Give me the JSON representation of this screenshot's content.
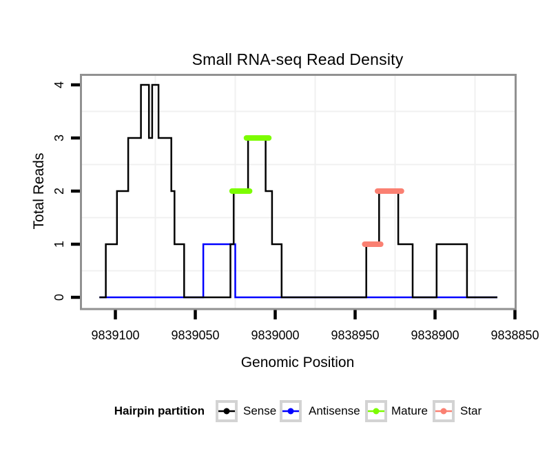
{
  "title": "Small RNA-seq Read Density",
  "axes": {
    "x": {
      "label": "Genomic Position",
      "ticks": [
        9839100,
        9839050,
        9839000,
        9838950,
        9838900,
        9838850
      ],
      "minor_gridlines": [
        9839075,
        9839025,
        9838975,
        9838925,
        9838875
      ],
      "range": [
        9839122,
        9838850
      ],
      "reversed": true
    },
    "y": {
      "label": "Total Reads",
      "ticks": [
        0,
        1,
        2,
        3,
        4
      ],
      "minor_gridlines": [
        0.5,
        1.5,
        2.5,
        3.5
      ],
      "range": [
        -0.2,
        4.2
      ]
    }
  },
  "chart_data": {
    "type": "line",
    "subtype": "step-density",
    "title": "Small RNA-seq Read Density",
    "xlabel": "Genomic Position",
    "ylabel": "Total Reads",
    "x_reversed": true,
    "grid": "minor-only",
    "series": [
      {
        "name": "Sense",
        "color": "#000000",
        "style": "step",
        "points": [
          [
            9839110,
            0
          ],
          [
            9839106,
            1
          ],
          [
            9839099,
            2
          ],
          [
            9839092,
            3
          ],
          [
            9839084,
            4
          ],
          [
            9839079,
            3
          ],
          [
            9839077,
            4
          ],
          [
            9839073,
            3
          ],
          [
            9839065,
            2
          ],
          [
            9839063,
            1
          ],
          [
            9839057,
            0
          ],
          [
            9839028,
            1
          ],
          [
            9839026,
            2
          ],
          [
            9839017,
            3
          ],
          [
            9839006,
            2
          ],
          [
            9839002,
            1
          ],
          [
            9838996,
            0
          ],
          [
            9838943,
            1
          ],
          [
            9838935,
            2
          ],
          [
            9838923,
            1
          ],
          [
            9838914,
            0
          ],
          [
            9838899,
            1
          ],
          [
            9838880,
            0
          ],
          [
            9838861,
            0
          ]
        ]
      },
      {
        "name": "Antisense",
        "color": "#0000FF",
        "style": "step",
        "points": [
          [
            9839110,
            0
          ],
          [
            9839045,
            1
          ],
          [
            9839025,
            0
          ],
          [
            9838861,
            0
          ]
        ]
      }
    ],
    "overlays": [
      {
        "name": "Mature",
        "color": "#7CFC00",
        "segments": [
          {
            "from": 9839027,
            "to": 9839016,
            "value": 2
          },
          {
            "from": 9839018,
            "to": 9839004,
            "value": 3
          }
        ]
      },
      {
        "name": "Star",
        "color": "#FA8072",
        "segments": [
          {
            "from": 9838944,
            "to": 9838934,
            "value": 1
          },
          {
            "from": 9838936,
            "to": 9838921,
            "value": 2
          }
        ]
      }
    ]
  },
  "legend": {
    "title": "Hairpin partition",
    "entries": [
      {
        "label": "Sense",
        "color": "#000000"
      },
      {
        "label": "Antisense",
        "color": "#0000FF"
      },
      {
        "label": "Mature",
        "color": "#7CFC00"
      },
      {
        "label": "Star",
        "color": "#FA8072"
      }
    ]
  },
  "colors": {
    "background": "#FFFFFF",
    "plot_border": "#919191",
    "grid": "#F0F0F0",
    "tick": "#000000",
    "legend_key_border": "#D3D3D3"
  }
}
